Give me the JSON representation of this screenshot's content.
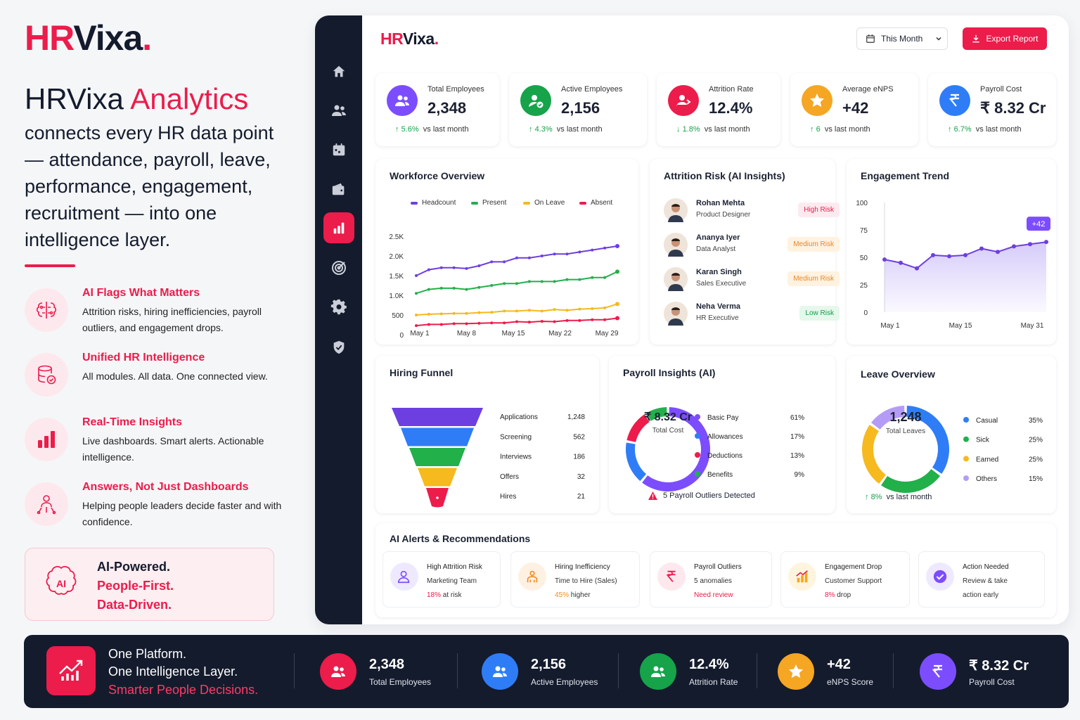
{
  "brand": {
    "hr": "HR",
    "vixa": "Vixa",
    "dot": "."
  },
  "left": {
    "headline_a": "HRVixa",
    "headline_b": "Analytics",
    "lead": "connects every HR data point — attendance, payroll, leave, performance, engagement, recruitment — into one intelligence layer.",
    "features": [
      {
        "title": "AI Flags What Matters",
        "desc": "Attrition risks, hiring inefficiencies, payroll outliers, and engagement drops.",
        "icon": "brain-chip-icon"
      },
      {
        "title": "Unified HR Intelligence",
        "desc": "All modules. All data. One connected view.",
        "icon": "database-check-icon"
      },
      {
        "title": "Real-Time Insights",
        "desc": "Live dashboards. Smart alerts. Actionable intelligence.",
        "icon": "bar-chart-icon"
      },
      {
        "title": "Answers, Not Just Dashboards",
        "desc": "Helping people leaders decide faster and with confidence.",
        "icon": "people-network-icon"
      }
    ],
    "promo": {
      "l1": "AI-Powered.",
      "l2": "People-First.",
      "l3": "Data-Driven.",
      "icon": "ai-brain-icon"
    }
  },
  "header": {
    "logo_hr": "HR",
    "logo_vixa": "Vixa",
    "logo_dot": ".",
    "period": "This Month",
    "export": "Export Report"
  },
  "sidebar": {
    "icons": [
      "home-icon",
      "users-icon",
      "calendar-icon",
      "wallet-icon",
      "analytics-icon",
      "target-icon",
      "gear-icon",
      "shield-icon"
    ],
    "active": "analytics-icon"
  },
  "kpis": [
    {
      "label": "Total Employees",
      "value": "2,348",
      "trend": "5.6%",
      "dir": "up",
      "vs": "vs last month",
      "color": "#7c4dff",
      "icon": "users-icon"
    },
    {
      "label": "Active Employees",
      "value": "2,156",
      "trend": "4.3%",
      "dir": "up",
      "vs": "vs last month",
      "color": "#16a34a",
      "icon": "user-check-icon"
    },
    {
      "label": "Attrition Rate",
      "value": "12.4%",
      "trend": "1.8%",
      "dir": "down",
      "vs": "vs last month",
      "color": "#ec1c4b",
      "icon": "user-leave-icon"
    },
    {
      "label": "Average eNPS",
      "value": "+42",
      "trend": "6",
      "dir": "up",
      "vs": "vs last month",
      "color": "#f5a623",
      "icon": "star-icon"
    },
    {
      "label": "Payroll Cost",
      "value": "₹ 8.32 Cr",
      "trend": "6.7%",
      "dir": "up",
      "vs": "vs last month",
      "color": "#2f7df6",
      "icon": "rupee-icon"
    }
  ],
  "workforce": {
    "title": "Workforce Overview",
    "chart_data": {
      "type": "line",
      "x": [
        "May 1",
        "May 3",
        "May 5",
        "May 7",
        "May 8",
        "May 10",
        "May 12",
        "May 14",
        "May 15",
        "May 17",
        "May 19",
        "May 21",
        "May 22",
        "May 24",
        "May 26",
        "May 28",
        "May 29"
      ],
      "x_ticks": [
        "May 1",
        "May 8",
        "May 15",
        "May 22",
        "May 29"
      ],
      "y_ticks": [
        "0",
        "500",
        "1.0K",
        "1.5K",
        "2.0K",
        "2.5K"
      ],
      "ylim": [
        0,
        2500
      ],
      "series": [
        {
          "name": "Headcount",
          "color": "#6d3fe0",
          "values": [
            1500,
            1650,
            1700,
            1700,
            1680,
            1750,
            1850,
            1850,
            1950,
            1950,
            2000,
            2050,
            2050,
            2100,
            2150,
            2200,
            2250
          ]
        },
        {
          "name": "Present",
          "color": "#22b04b",
          "values": [
            1050,
            1150,
            1180,
            1180,
            1150,
            1200,
            1250,
            1300,
            1300,
            1350,
            1350,
            1350,
            1400,
            1400,
            1450,
            1450,
            1600
          ]
        },
        {
          "name": "On Leave",
          "color": "#f6b91e",
          "values": [
            500,
            520,
            530,
            540,
            540,
            560,
            570,
            600,
            600,
            620,
            600,
            640,
            620,
            650,
            660,
            680,
            780
          ]
        },
        {
          "name": "Absent",
          "color": "#ec1c4b",
          "values": [
            230,
            260,
            260,
            280,
            280,
            290,
            300,
            300,
            330,
            320,
            340,
            330,
            360,
            360,
            380,
            380,
            420
          ]
        }
      ]
    }
  },
  "attrition": {
    "title": "Attrition Risk (AI Insights)",
    "people": [
      {
        "name": "Rohan Mehta",
        "role": "Product Designer",
        "risk": "High Risk",
        "level": "high"
      },
      {
        "name": "Ananya Iyer",
        "role": "Data Analyst",
        "risk": "Medium Risk",
        "level": "medium"
      },
      {
        "name": "Karan Singh",
        "role": "Sales Executive",
        "risk": "Medium Risk",
        "level": "medium"
      },
      {
        "name": "Neha Verma",
        "role": "HR Executive",
        "risk": "Low Risk",
        "level": "low"
      }
    ]
  },
  "engagement": {
    "title": "Engagement Trend",
    "badge": "+42",
    "chart_data": {
      "type": "area",
      "x": [
        "May 1",
        "May 4",
        "May 7",
        "May 10",
        "May 13",
        "May 16",
        "May 19",
        "May 22",
        "May 25",
        "May 28",
        "May 31"
      ],
      "x_ticks": [
        "May 1",
        "May 15",
        "May 31"
      ],
      "y_ticks": [
        "0",
        "25",
        "50",
        "75",
        "100"
      ],
      "ylim": [
        0,
        100
      ],
      "series": [
        {
          "color": "#6d3fe0",
          "values": [
            48,
            45,
            40,
            52,
            51,
            52,
            58,
            55,
            60,
            62,
            64
          ]
        }
      ]
    }
  },
  "funnel": {
    "title": "Hiring Funnel",
    "chart_data": {
      "type": "bar",
      "categories": [
        "Applications",
        "Screening",
        "Interviews",
        "Offers",
        "Hires"
      ],
      "values": [
        1248,
        562,
        186,
        32,
        21
      ],
      "colors": [
        "#6d3fe0",
        "#2f7df6",
        "#22b04b",
        "#f6b91e",
        "#ec1c4b"
      ]
    },
    "labels": [
      "1,248",
      "562",
      "186",
      "32",
      "21"
    ]
  },
  "payroll": {
    "title": "Payroll Insights (AI)",
    "center_value": "₹ 8.32 Cr",
    "center_label": "Total Cost",
    "outliers": "5 Payroll Outliers Detected",
    "chart_data": {
      "type": "pie",
      "categories": [
        "Basic Pay",
        "Allowances",
        "Deductions",
        "Benefits"
      ],
      "values": [
        61,
        17,
        13,
        9
      ],
      "colors": [
        "#7c4dff",
        "#2f7df6",
        "#ec1c4b",
        "#22b04b"
      ]
    },
    "labels": [
      "61%",
      "17%",
      "13%",
      "9%"
    ]
  },
  "leave": {
    "title": "Leave Overview",
    "center_value": "1,248",
    "center_label": "Total Leaves",
    "trend": "8%",
    "vs": "vs last month",
    "chart_data": {
      "type": "pie",
      "categories": [
        "Casual",
        "Sick",
        "Earned",
        "Others"
      ],
      "values": [
        35,
        25,
        25,
        15
      ],
      "colors": [
        "#2f7df6",
        "#22b04b",
        "#f6b91e",
        "#b49cf6"
      ]
    },
    "labels": [
      "35%",
      "25%",
      "25%",
      "15%"
    ]
  },
  "alerts": {
    "title": "AI Alerts & Recommendations",
    "items": [
      {
        "l1": "High Attrition Risk",
        "l2": "Marketing Team",
        "hl": "18%",
        "rest": " at risk",
        "color": "#7c4dff",
        "bg": "#efe9ff",
        "icon": "user-alert-icon"
      },
      {
        "l1": "Hiring Inefficiency",
        "l2": "Time to Hire (Sales)",
        "hl": "45%",
        "rest": " higher",
        "color": "#f58a1f",
        "bg": "#fff1e2",
        "icon": "team-icon"
      },
      {
        "l1": "Payroll Outliers",
        "l2": "5 anomalies",
        "hl": "Need review",
        "rest": "",
        "color": "#ec1c4b",
        "bg": "#fde8ee",
        "icon": "rupee-icon"
      },
      {
        "l1": "Engagement Drop",
        "l2": "Customer Support",
        "hl": "8%",
        "rest": " drop",
        "color": "#f5a623",
        "bg": "#fff4dd",
        "icon": "chart-down-icon"
      },
      {
        "l1": "Action Needed",
        "l2": "Review & take",
        "hl": "action early",
        "rest": "",
        "color": "#7c4dff",
        "bg": "#efe9ff",
        "icon": "check-icon"
      }
    ]
  },
  "footer": {
    "l1": "One Platform.",
    "l2": "One Intelligence Layer.",
    "l3": "Smarter People Decisions.",
    "stats": [
      {
        "value": "2,348",
        "label": "Total Employees",
        "color": "#ec1c4b",
        "icon": "users-icon"
      },
      {
        "value": "2,156",
        "label": "Active Employees",
        "color": "#2f7df6",
        "icon": "users-icon"
      },
      {
        "value": "12.4%",
        "label": "Attrition Rate",
        "color": "#16a34a",
        "icon": "users-icon"
      },
      {
        "value": "+42",
        "label": "eNPS Score",
        "color": "#f5a623",
        "icon": "star-icon"
      },
      {
        "value": "₹ 8.32 Cr",
        "label": "Payroll Cost",
        "color": "#7c4dff",
        "icon": "rupee-icon"
      }
    ]
  }
}
